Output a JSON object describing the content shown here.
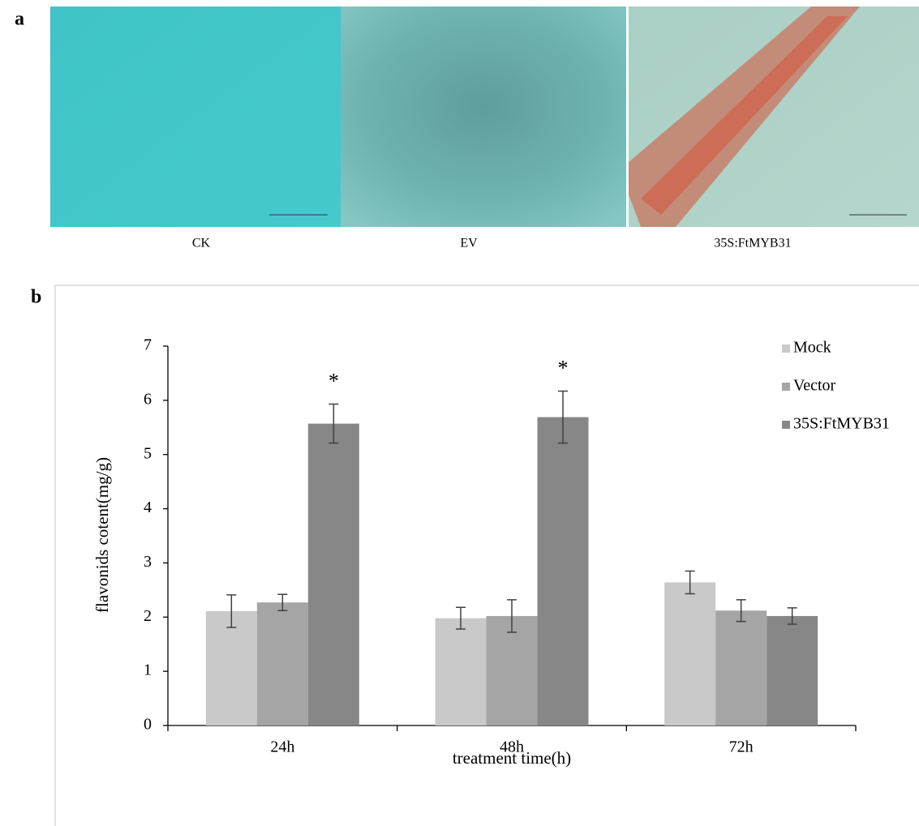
{
  "panel_a": {
    "label": "a",
    "captions": [
      "CK",
      "EV",
      "35S:FtMYB31"
    ]
  },
  "chart_data": {
    "type": "bar",
    "label": "b",
    "x_label": "treatment time(h)",
    "y_label": "flavonids cotent(mg/g)",
    "categories": [
      "24h",
      "48h",
      "72h"
    ],
    "series": [
      {
        "name": "Mock",
        "color": "#c9c9c9",
        "values": [
          2.11,
          1.98,
          2.64
        ],
        "errors": [
          0.3,
          0.2,
          0.21
        ]
      },
      {
        "name": "Vector",
        "color": "#a5a5a5",
        "values": [
          2.27,
          2.02,
          2.12
        ],
        "errors": [
          0.15,
          0.3,
          0.2
        ]
      },
      {
        "name": "35S:FtMYB31",
        "color": "#878787",
        "values": [
          5.57,
          5.69,
          2.02
        ],
        "errors": [
          0.36,
          0.48,
          0.15
        ],
        "significance_labels": [
          "*",
          "*",
          null
        ]
      }
    ],
    "ylim": [
      0,
      7
    ],
    "yticks": [
      0,
      1,
      2,
      3,
      4,
      5,
      6,
      7
    ],
    "legend": "top-right"
  }
}
